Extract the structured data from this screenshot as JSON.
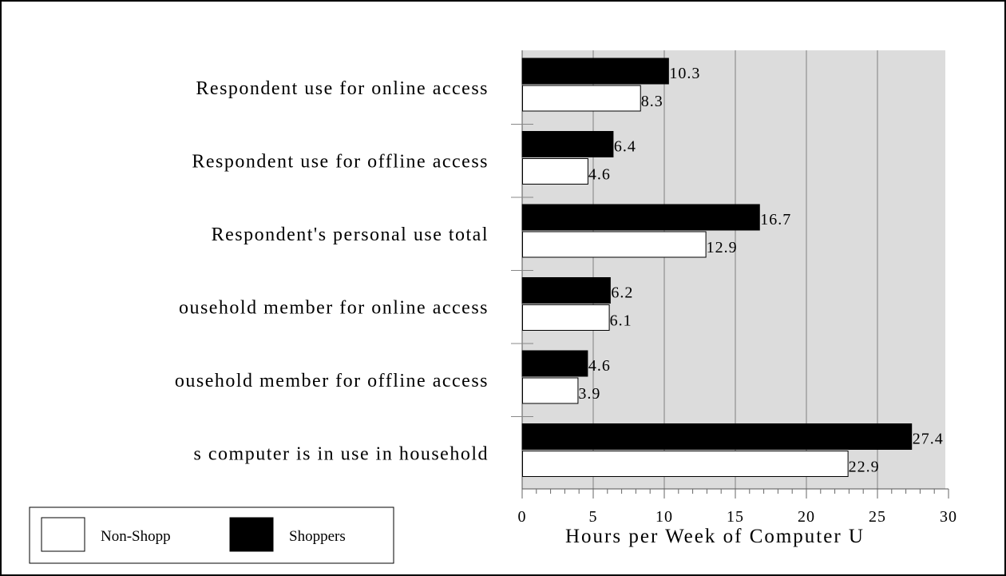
{
  "chart_data": {
    "type": "bar",
    "orientation": "horizontal",
    "categories": [
      "Respondent use for online access",
      "Respondent use for offline access",
      "Respondent's personal use total",
      "ousehold member for online access",
      "ousehold member for offline access",
      "s computer is in use in household"
    ],
    "series": [
      {
        "name": "Shoppers",
        "values": [
          10.3,
          6.4,
          16.7,
          6.2,
          4.6,
          27.4
        ],
        "color": "#000000"
      },
      {
        "name": "Non-Shopp",
        "values": [
          8.3,
          4.6,
          12.9,
          6.1,
          3.9,
          22.9
        ],
        "color": "#ffffff"
      }
    ],
    "value_labels": {
      "Shoppers": [
        "10.3",
        "6.4",
        "16.7",
        "6.2",
        "4.6",
        "27.4"
      ],
      "Non-Shopp": [
        "8.3",
        "4.6",
        "12.9",
        "6.1",
        "3.9",
        "22.9"
      ]
    },
    "xlabel": "Hours per Week of Computer U",
    "xlim": [
      0,
      30
    ],
    "xticks": [
      "0",
      "5",
      "10",
      "15",
      "20",
      "25",
      "30"
    ],
    "grid": true,
    "plot_background": "#dcdcdc",
    "legend": {
      "position": "bottom-left",
      "entries": [
        "Non-Shopp",
        "Shoppers"
      ]
    }
  }
}
